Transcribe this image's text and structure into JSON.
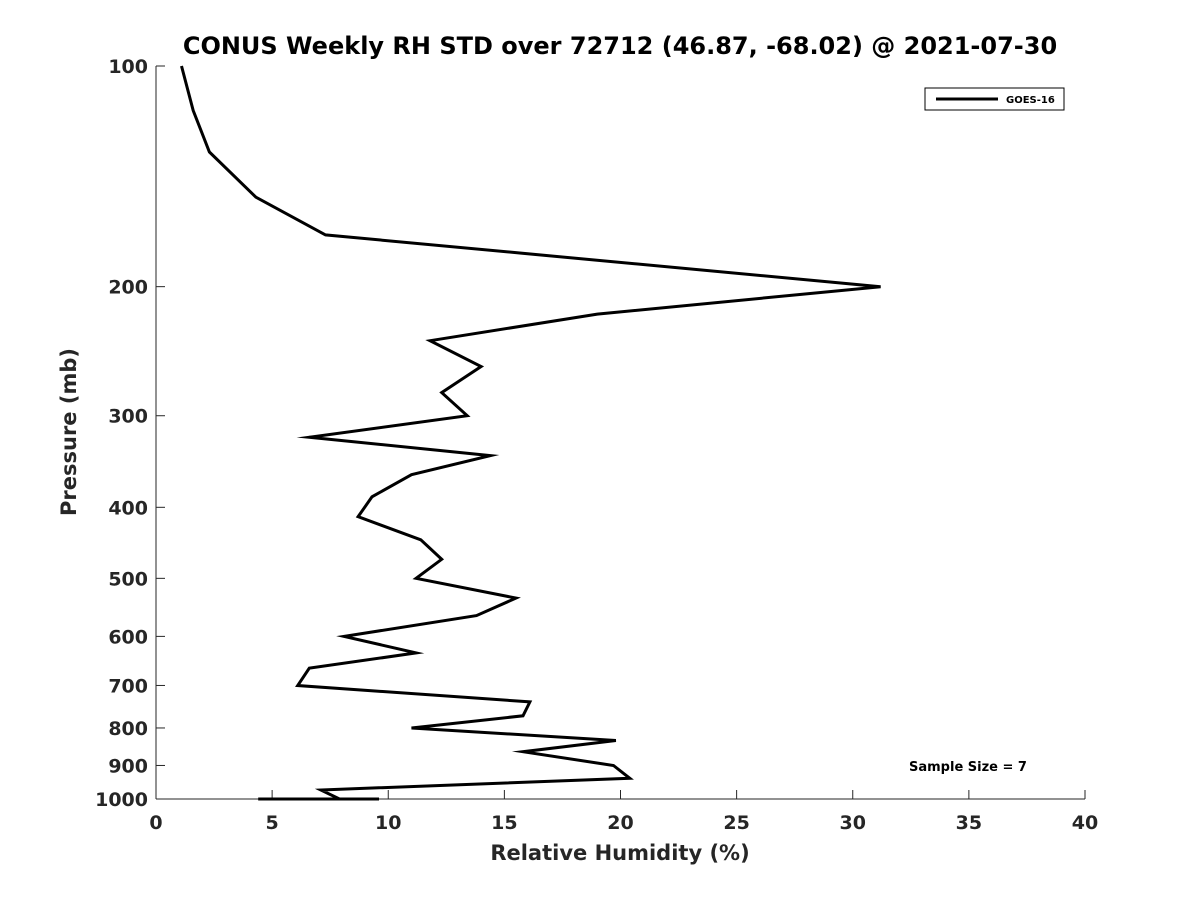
{
  "chart_data": {
    "type": "line",
    "title": "CONUS Weekly RH STD over 72712 (46.87, -68.02) @ 2021-07-30",
    "xlabel": "Relative Humidity (%)",
    "ylabel": "Pressure (mb)",
    "xlim": [
      0,
      40
    ],
    "ylim": [
      100,
      1000
    ],
    "y_scale": "log",
    "y_reversed": true,
    "x_ticks": [
      "0",
      "5",
      "10",
      "15",
      "20",
      "25",
      "30",
      "35",
      "40"
    ],
    "y_ticks": [
      "100",
      "200",
      "300",
      "400",
      "500",
      "600",
      "700",
      "800",
      "900",
      "1000"
    ],
    "grid": false,
    "legend_position": "top-right",
    "series": [
      {
        "name": "GOES-16",
        "color": "#000000",
        "x": [
          1.1,
          1.6,
          2.3,
          4.3,
          7.3,
          31.2,
          19.0,
          11.8,
          14.0,
          12.3,
          13.4,
          6.6,
          14.4,
          11.0,
          9.3,
          8.7,
          11.4,
          12.3,
          11.2,
          15.5,
          13.8,
          8.1,
          11.2,
          6.6,
          6.1,
          16.1,
          15.8,
          11.0,
          19.8,
          15.8,
          19.7,
          20.4,
          7.1,
          7.9,
          8.5,
          9.1,
          9.6,
          5.4,
          4.4,
          7.2,
          8.2
        ],
        "y": [
          100,
          115,
          131,
          151,
          170,
          200,
          218,
          237,
          257,
          279,
          300,
          321,
          340,
          361,
          387,
          412,
          443,
          471,
          500,
          532,
          562,
          600,
          632,
          663,
          700,
          737,
          770,
          800,
          832,
          862,
          900,
          937,
          972,
          1000,
          1000,
          1000,
          1000,
          1000,
          1000,
          1000,
          1000
        ]
      }
    ],
    "annotations": [
      "Sample Size = 7"
    ]
  }
}
